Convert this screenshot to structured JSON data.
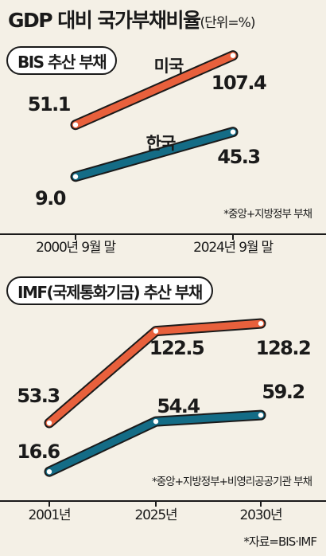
{
  "title": "GDP 대비 국가부채비율",
  "title_unit": "(단위=%)",
  "source": "*자료=BIS·IMF",
  "colors": {
    "us": "#e8603c",
    "korea": "#146c86",
    "background": "#f4f0e6"
  },
  "chart_data": [
    {
      "type": "line",
      "tag": "BIS 추산 부채",
      "note": "*중앙+지방정부 부채",
      "categories": [
        "2000년 9월 말",
        "2024년 9월 말"
      ],
      "series": [
        {
          "name": "미국",
          "values": [
            51.1,
            107.4
          ],
          "labels": [
            "51.1",
            "107.4"
          ]
        },
        {
          "name": "한국",
          "values": [
            9.0,
            45.3
          ],
          "labels": [
            "9.0",
            "45.3"
          ]
        }
      ]
    },
    {
      "type": "line",
      "tag": "IMF(국제통화기금) 추산 부채",
      "note": "*중앙+지방정부+비영리공공기관 부채",
      "categories": [
        "2001년",
        "2025년",
        "2030년"
      ],
      "series": [
        {
          "values": [
            53.3,
            122.5,
            128.2
          ],
          "labels": [
            "53.3",
            "122.5",
            "128.2"
          ]
        },
        {
          "values": [
            16.6,
            54.4,
            59.2
          ],
          "labels": [
            "16.6",
            "54.4",
            "59.2"
          ]
        }
      ]
    }
  ]
}
